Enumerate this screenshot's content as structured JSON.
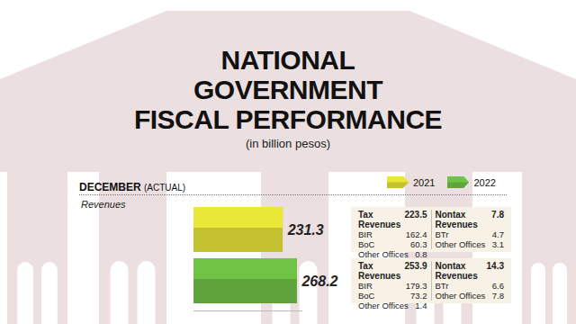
{
  "chart_data": {
    "type": "bar",
    "orientation": "horizontal",
    "title": "NATIONAL\nGOVERNMENT\nFISCAL PERFORMANCE",
    "subtitle": "(in billion pesos)",
    "period": "DECEMBER",
    "period_note": "(ACTUAL)",
    "section": "Revenues",
    "categories": [
      "2021",
      "2022"
    ],
    "values": [
      231.3,
      268.2
    ],
    "colors": [
      "#c3c12f",
      "#5ea43a"
    ],
    "legend": "top-right",
    "data_labels": true,
    "tick_labels": false,
    "xlim": [
      0,
      280
    ],
    "xticks": [],
    "details": [
      {
        "tax": {
          "label": "Tax Revenues",
          "value": 223.5,
          "items": [
            {
              "label": "BIR",
              "value": 162.4
            },
            {
              "label": "BoC",
              "value": 60.3
            },
            {
              "label": "Other Offices",
              "value": 0.8
            }
          ]
        },
        "nontax": {
          "label": "Nontax Revenues",
          "value": 7.8,
          "items": [
            {
              "label": "BTr",
              "value": 4.7
            },
            {
              "label": "Other Offices",
              "value": 3.1
            }
          ]
        }
      },
      {
        "tax": {
          "label": "Tax Revenues",
          "value": 253.9,
          "items": [
            {
              "label": "BIR",
              "value": 179.3
            },
            {
              "label": "BoC",
              "value": 73.2
            },
            {
              "label": "Other Offices",
              "value": 1.4
            }
          ]
        },
        "nontax": {
          "label": "Nontax Revenues",
          "value": 14.3,
          "items": [
            {
              "label": "BTr",
              "value": 6.6
            },
            {
              "label": "Other Offices",
              "value": 7.8
            }
          ]
        }
      }
    ]
  }
}
